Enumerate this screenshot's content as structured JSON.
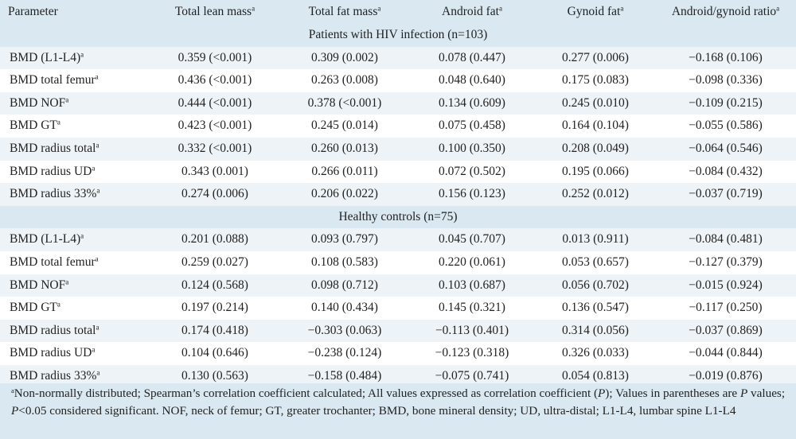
{
  "table": {
    "superscript": "a",
    "headers": [
      "Parameter",
      "Total lean mass",
      "Total fat mass",
      "Android fat",
      "Gynoid fat",
      "Android/gynoid ratio"
    ],
    "groups": [
      {
        "title": "Patients with HIV infection (n=103)",
        "rows": [
          {
            "parameter": "BMD (L1-L4)",
            "values": [
              "0.359 (<0.001)",
              "0.309 (0.002)",
              "0.078 (0.447)",
              "0.277 (0.006)",
              "−0.168 (0.106)"
            ]
          },
          {
            "parameter": "BMD total femur",
            "values": [
              "0.436 (<0.001)",
              "0.263 (0.008)",
              "0.048 (0.640)",
              "0.175 (0.083)",
              "−0.098 (0.336)"
            ]
          },
          {
            "parameter": "BMD NOF",
            "values": [
              "0.444 (<0.001)",
              "0.378 (<0.001)",
              "0.134 (0.609)",
              "0.245 (0.010)",
              "−0.109 (0.215)"
            ]
          },
          {
            "parameter": "BMD GT",
            "values": [
              "0.423 (<0.001)",
              "0.245 (0.014)",
              "0.075 (0.458)",
              "0.164 (0.104)",
              "−0.055 (0.586)"
            ]
          },
          {
            "parameter": "BMD radius total",
            "values": [
              "0.332 (<0.001)",
              "0.260 (0.013)",
              "0.100 (0.350)",
              "0.208 (0.049)",
              "−0.064 (0.546)"
            ]
          },
          {
            "parameter": "BMD radius UD",
            "values": [
              "0.343 (0.001)",
              "0.266 (0.011)",
              "0.072 (0.502)",
              "0.195 (0.066)",
              "−0.084 (0.432)"
            ]
          },
          {
            "parameter": "BMD radius 33%",
            "values": [
              "0.274 (0.006)",
              "0.206 (0.022)",
              "0.156 (0.123)",
              "0.252 (0.012)",
              "−0.037 (0.719)"
            ]
          }
        ]
      },
      {
        "title": "Healthy controls (n=75)",
        "rows": [
          {
            "parameter": "BMD (L1-L4)",
            "values": [
              "0.201 (0.088)",
              "0.093 (0.797)",
              "0.045 (0.707)",
              "0.013 (0.911)",
              "−0.084 (0.481)"
            ]
          },
          {
            "parameter": "BMD total femur",
            "values": [
              "0.259 (0.027)",
              "0.108 (0.583)",
              "0.220 (0.061)",
              "0.053 (0.657)",
              "−0.127 (0.379)"
            ]
          },
          {
            "parameter": "BMD NOF",
            "values": [
              "0.124 (0.568)",
              "0.098 (0.712)",
              "0.103 (0.687)",
              "0.056 (0.702)",
              "−0.015 (0.924)"
            ]
          },
          {
            "parameter": "BMD GT",
            "values": [
              "0.197 (0.214)",
              "0.140 (0.434)",
              "0.145 (0.321)",
              "0.136 (0.547)",
              "−0.117 (0.250)"
            ]
          },
          {
            "parameter": "BMD radius total",
            "values": [
              "0.174 (0.418)",
              "−0.303 (0.063)",
              "−0.113 (0.401)",
              "0.314 (0.056)",
              "−0.037 (0.869)"
            ]
          },
          {
            "parameter": "BMD radius UD",
            "values": [
              "0.104 (0.646)",
              "−0.238 (0.124)",
              "−0.123 (0.318)",
              "0.326 (0.033)",
              "−0.044 (0.844)"
            ]
          },
          {
            "parameter": "BMD radius 33%",
            "values": [
              "0.130 (0.563)",
              "−0.158 (0.484)",
              "−0.075 (0.741)",
              "0.054 (0.813)",
              "−0.019 (0.876)"
            ]
          }
        ]
      }
    ]
  },
  "footnote": {
    "marker": "a",
    "text_1": "Non-normally distributed; Spearman’s correlation coefficient calculated; All values expressed as correlation coefficient (",
    "p_1": "P",
    "text_2": "); Values in parentheses are ",
    "p_2": "P",
    "text_3": " values; ",
    "p_3": "P",
    "text_4": "<0.05 considered significant. NOF, neck of femur; GT, greater trochanter; BMD, bone mineral density; UD, ultra-distal; L1-L4, lumbar spine L1-L4"
  }
}
